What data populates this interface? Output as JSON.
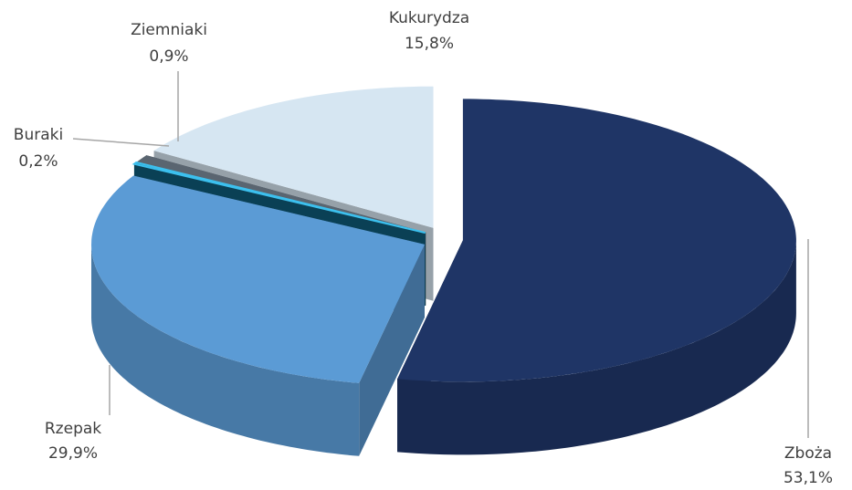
{
  "chart_data": {
    "type": "pie3d",
    "categories": [
      "Zboża",
      "Rzepak",
      "Buraki",
      "Ziemniaki",
      "Kukurydza"
    ],
    "values": [
      53.1,
      29.9,
      0.2,
      0.9,
      15.8
    ],
    "value_labels": [
      "53,1%",
      "29,9%",
      "0,2%",
      "0,9%",
      "15,8%"
    ],
    "colors": [
      "#1f3566",
      "#5b9bd5",
      "#0e5b7a",
      "#5a6570",
      "#d6e6f2"
    ]
  }
}
